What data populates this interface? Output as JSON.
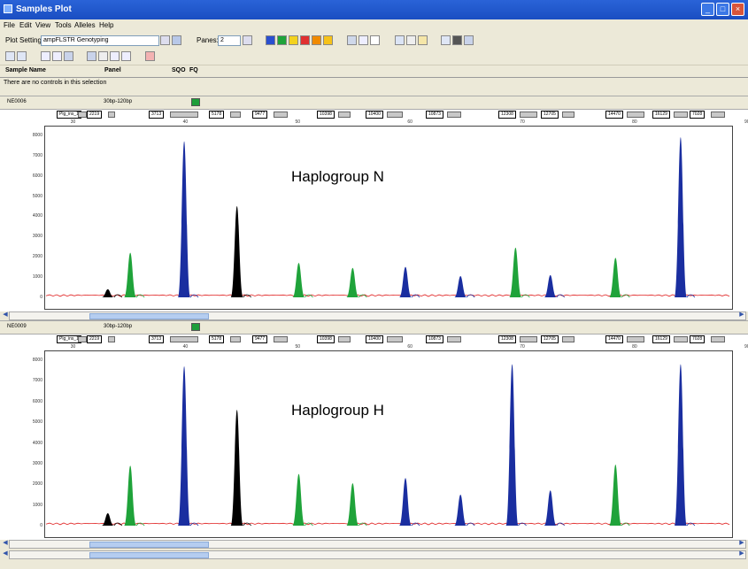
{
  "window": {
    "title": "Samples Plot"
  },
  "menu": [
    "File",
    "Edit",
    "View",
    "Tools",
    "Alleles",
    "Help"
  ],
  "toolbar": {
    "plot_setting_label": "Plot Setting:",
    "plot_setting_value": "ampFLSTR Genotyping",
    "panes_label": "Panes:",
    "panes_value": "2"
  },
  "header": {
    "sample_name": "Sample Name",
    "panel": "Panel",
    "sqo": "SQO",
    "fq": "FQ"
  },
  "status": "There are no controls in this selection",
  "colors": {
    "blue": "#1a2ea0",
    "green": "#1fa33a",
    "black": "#000000",
    "red": "#e02020",
    "orange": "#f0a000"
  },
  "panes": [
    {
      "sample_id": "NE0006",
      "size_range": "30bp-120bp",
      "annotation": "Haplogroup N",
      "markers": [
        "Plg_ins_1",
        "2219",
        "3713",
        "5178",
        "9477",
        "10398",
        "10400",
        "10873",
        "12308",
        "12705",
        "14470",
        "16129",
        "7028"
      ],
      "y_ticks": [
        "8000",
        "7000",
        "6000",
        "5000",
        "4000",
        "3000",
        "2000",
        "1000",
        "0"
      ],
      "x_ticks": [
        "30",
        "40",
        "50",
        "60",
        "70",
        "80",
        "90"
      ],
      "peaks": [
        {
          "x": 33.0,
          "h": 400,
          "color": "black"
        },
        {
          "x": 35.0,
          "h": 2200,
          "color": "green"
        },
        {
          "x": 39.8,
          "h": 7700,
          "color": "blue"
        },
        {
          "x": 44.5,
          "h": 4500,
          "color": "black"
        },
        {
          "x": 50.0,
          "h": 1700,
          "color": "green"
        },
        {
          "x": 54.8,
          "h": 1450,
          "color": "green"
        },
        {
          "x": 59.5,
          "h": 1500,
          "color": "blue"
        },
        {
          "x": 64.4,
          "h": 1050,
          "color": "blue"
        },
        {
          "x": 69.3,
          "h": 2450,
          "color": "green"
        },
        {
          "x": 72.4,
          "h": 1100,
          "color": "blue"
        },
        {
          "x": 78.2,
          "h": 1950,
          "color": "green"
        },
        {
          "x": 84.0,
          "h": 7900,
          "color": "blue"
        }
      ]
    },
    {
      "sample_id": "NE0009",
      "size_range": "30bp-120bp",
      "annotation": "Haplogroup H",
      "markers": [
        "Plg_ins_1",
        "2219",
        "3713",
        "5178",
        "9477",
        "10398",
        "10400",
        "10873",
        "12308",
        "12705",
        "14470",
        "16129",
        "7028"
      ],
      "y_ticks": [
        "8000",
        "7000",
        "6000",
        "5000",
        "4000",
        "3000",
        "2000",
        "1000",
        "0"
      ],
      "x_ticks": [
        "30",
        "40",
        "50",
        "60",
        "70",
        "80",
        "90"
      ],
      "peaks": [
        {
          "x": 33.0,
          "h": 600,
          "color": "black"
        },
        {
          "x": 35.0,
          "h": 2900,
          "color": "green"
        },
        {
          "x": 39.8,
          "h": 7700,
          "color": "blue"
        },
        {
          "x": 44.5,
          "h": 5600,
          "color": "black"
        },
        {
          "x": 50.0,
          "h": 2500,
          "color": "green"
        },
        {
          "x": 54.8,
          "h": 2050,
          "color": "green"
        },
        {
          "x": 59.5,
          "h": 2300,
          "color": "blue"
        },
        {
          "x": 64.4,
          "h": 1500,
          "color": "blue"
        },
        {
          "x": 69.0,
          "h": 7800,
          "color": "blue"
        },
        {
          "x": 72.4,
          "h": 1700,
          "color": "blue"
        },
        {
          "x": 78.2,
          "h": 2950,
          "color": "green"
        },
        {
          "x": 84.0,
          "h": 7800,
          "color": "blue"
        }
      ]
    }
  ]
}
